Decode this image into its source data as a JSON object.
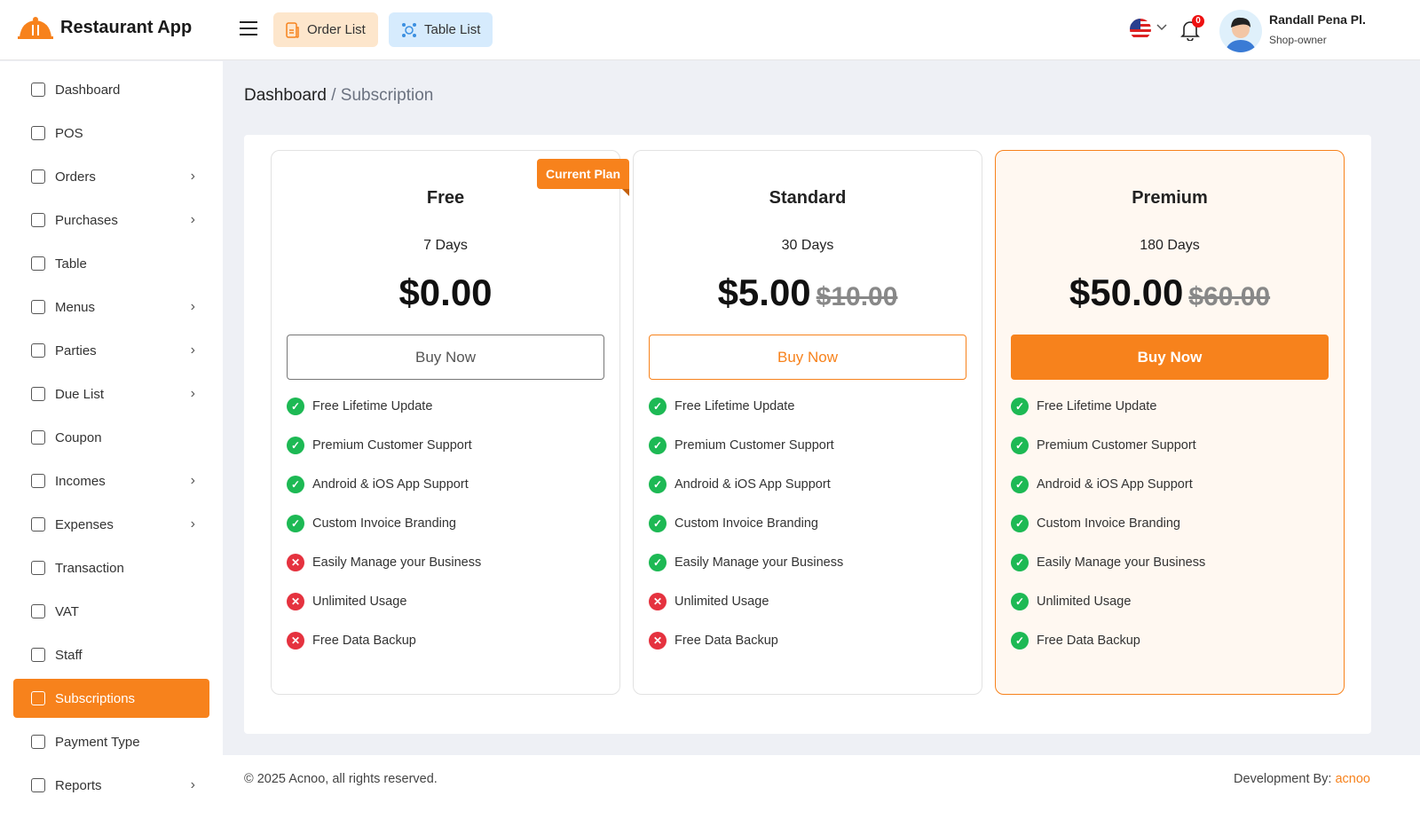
{
  "app": {
    "title": "Restaurant App"
  },
  "header": {
    "order_list": "Order List",
    "table_list": "Table List",
    "notifications": "0",
    "user_name": "Randall Pena Pl.",
    "user_role": "Shop-owner"
  },
  "sidebar": {
    "items": [
      {
        "label": "Dashboard",
        "chev": false
      },
      {
        "label": "POS",
        "chev": false
      },
      {
        "label": "Orders",
        "chev": true
      },
      {
        "label": "Purchases",
        "chev": true
      },
      {
        "label": "Table",
        "chev": false
      },
      {
        "label": "Menus",
        "chev": true
      },
      {
        "label": "Parties",
        "chev": true
      },
      {
        "label": "Due List",
        "chev": true
      },
      {
        "label": "Coupon",
        "chev": false
      },
      {
        "label": "Incomes",
        "chev": true
      },
      {
        "label": "Expenses",
        "chev": true
      },
      {
        "label": "Transaction",
        "chev": false
      },
      {
        "label": "VAT",
        "chev": false
      },
      {
        "label": "Staff",
        "chev": false
      },
      {
        "label": "Subscriptions",
        "chev": false,
        "active": true
      },
      {
        "label": "Payment Type",
        "chev": false
      },
      {
        "label": "Reports",
        "chev": true
      }
    ]
  },
  "breadcrumb": {
    "root": "Dashboard",
    "sep": " / ",
    "current": "Subscription"
  },
  "current_plan_label": "Current Plan",
  "plans": [
    {
      "name": "Free",
      "duration": "7 Days",
      "price": "$0.00",
      "old_price": "",
      "button": "Buy Now",
      "features": [
        true,
        true,
        true,
        true,
        false,
        false,
        false
      ]
    },
    {
      "name": "Standard",
      "duration": "30 Days",
      "price": "$5.00",
      "old_price": "$10.00",
      "button": "Buy Now",
      "features": [
        true,
        true,
        true,
        true,
        true,
        false,
        false
      ]
    },
    {
      "name": "Premium",
      "duration": "180 Days",
      "price": "$50.00",
      "old_price": "$60.00",
      "button": "Buy Now",
      "features": [
        true,
        true,
        true,
        true,
        true,
        true,
        true
      ]
    }
  ],
  "feature_names": [
    "Free Lifetime Update",
    "Premium Customer Support",
    "Android & iOS App Support",
    "Custom Invoice Branding",
    "Easily Manage your Business",
    "Unlimited Usage",
    "Free Data Backup"
  ],
  "footer": {
    "copyright": "© 2025 Acnoo, all rights reserved.",
    "dev_label": "Development By: ",
    "dev_link": "acnoo"
  },
  "colors": {
    "accent": "#f7821c",
    "check": "#1db954",
    "cross": "#e5323f"
  }
}
